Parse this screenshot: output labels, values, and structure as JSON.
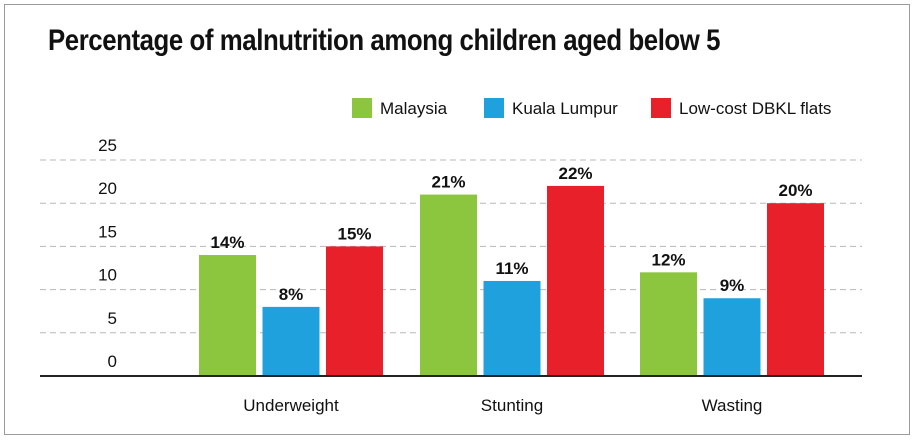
{
  "chart_data": {
    "type": "bar",
    "title": "Percentage of malnutrition among children aged below 5",
    "categories": [
      "Underweight",
      "Stunting",
      "Wasting"
    ],
    "series": [
      {
        "name": "Malaysia",
        "color": "#8cc63f",
        "values": [
          14,
          21,
          12
        ],
        "labels": [
          "14%",
          "21%",
          "12%"
        ]
      },
      {
        "name": "Kuala Lumpur",
        "color": "#1ea1dd",
        "values": [
          8,
          11,
          9
        ],
        "labels": [
          "8%",
          "11%",
          "9%"
        ]
      },
      {
        "name": "Low-cost DBKL flats",
        "color": "#e8202a",
        "values": [
          15,
          22,
          20
        ],
        "labels": [
          "15%",
          "22%",
          "20%"
        ]
      }
    ],
    "yticks": [
      "0",
      "5",
      "10",
      "15",
      "20",
      "25"
    ],
    "ylim": [
      0,
      25
    ],
    "grid": true,
    "gridStyle": "dashed",
    "legend": "top-right"
  }
}
